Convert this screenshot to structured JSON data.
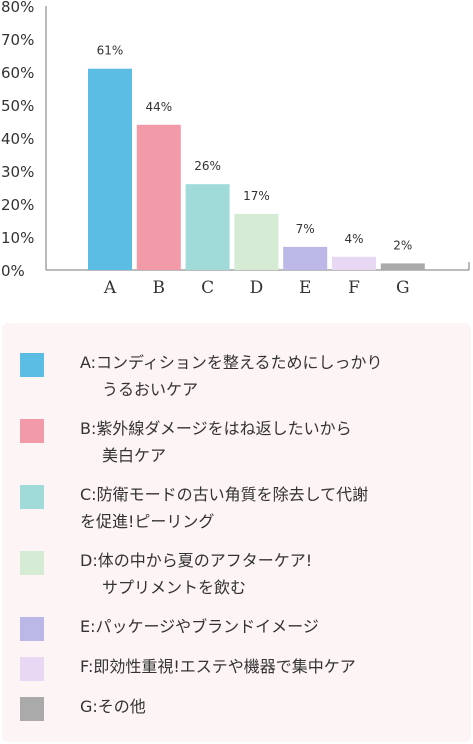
{
  "chart_data": {
    "type": "bar",
    "categories": [
      "A",
      "B",
      "C",
      "D",
      "E",
      "F",
      "G"
    ],
    "values": [
      61,
      44,
      26,
      17,
      7,
      4,
      2
    ],
    "data_labels": [
      "61%",
      "44%",
      "26%",
      "17%",
      "7%",
      "4%",
      "2%"
    ],
    "ylim": [
      0,
      80
    ],
    "yticks": [
      0,
      10,
      20,
      30,
      40,
      50,
      60,
      70,
      80
    ],
    "ytick_labels": [
      "0%",
      "10%",
      "20%",
      "30%",
      "40%",
      "50%",
      "60%",
      "70%",
      "80%"
    ],
    "colors": [
      "#5bbce4",
      "#f29aa8",
      "#a0dbd9",
      "#d6ebd3",
      "#bbb7e6",
      "#e9d8f4",
      "#aaaaaa"
    ],
    "grid": false,
    "legend_position": "bottom"
  },
  "legend": [
    {
      "line1": "A:コンディションを整えるためにしっかり",
      "line2": "うるおいケア"
    },
    {
      "line1": "B:紫外線ダメージをはね返したいから",
      "line2": "美白ケア"
    },
    {
      "line1": "C:防衛モードの古い角質を除去して代謝",
      "line2": "を促進!ピーリング"
    },
    {
      "line1": "D:体の中から夏のアフターケア!",
      "line2": "サプリメントを飲む"
    },
    {
      "line1": "E:パッケージやブランドイメージ",
      "line2": ""
    },
    {
      "line1": "F:即効性重視!エステや機器で集中ケア",
      "line2": ""
    },
    {
      "line1": "G:その他",
      "line2": ""
    }
  ]
}
